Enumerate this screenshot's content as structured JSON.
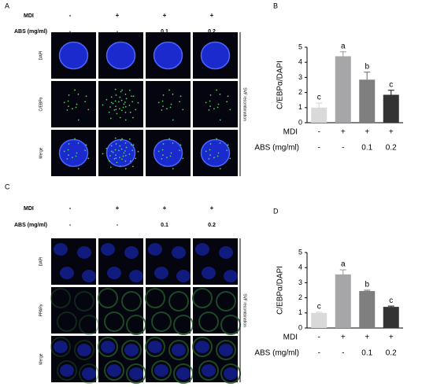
{
  "panels": [
    {
      "label": "A",
      "mdi_label": "MDI",
      "mdi": [
        "-",
        "+",
        "+",
        "+"
      ],
      "abs_label": "ABS  (mg/ml)",
      "abs": [
        "-",
        "-",
        "0.1",
        "0.2"
      ],
      "rows": [
        "DAPI",
        "C/EBPα",
        "Merge"
      ],
      "side_label": "SVF recombination"
    },
    {
      "label": "C",
      "mdi_label": "MDI",
      "mdi": [
        "-",
        "+",
        "+",
        "+"
      ],
      "abs_label": "ABS  (mg/ml)",
      "abs": [
        "-",
        "-",
        "0.1",
        "0.2"
      ],
      "rows": [
        "DAPI",
        "PPARγ",
        "Merge"
      ],
      "side_label": "SVF recombination"
    }
  ],
  "chart_data": [
    {
      "type": "bar",
      "panel_label": "B",
      "ylabel": "C/EBPα/DAPI",
      "ylim": [
        0,
        5
      ],
      "yticks": [
        0,
        1,
        2,
        3,
        4,
        5
      ],
      "values": [
        1.0,
        4.4,
        2.85,
        1.85
      ],
      "errors": [
        0.3,
        0.3,
        0.5,
        0.3
      ],
      "colors": [
        "#d9d9d9",
        "#a6a6a8",
        "#7f7f80",
        "#333333"
      ],
      "annotations": [
        "c",
        "a",
        "b",
        "c"
      ],
      "conditions": [
        {
          "name": "MDI",
          "values": [
            "-",
            "+",
            "+",
            "+"
          ]
        },
        {
          "name": "ABS (mg/ml)",
          "values": [
            "-",
            "-",
            "0.1",
            "0.2"
          ]
        }
      ]
    },
    {
      "type": "bar",
      "panel_label": "D",
      "ylabel": "C/EBPα/DAPI",
      "ylim": [
        0,
        5
      ],
      "yticks": [
        0,
        1,
        2,
        3,
        4,
        5
      ],
      "values": [
        1.0,
        3.55,
        2.45,
        1.4
      ],
      "errors": [
        0.05,
        0.3,
        0.05,
        0.05
      ],
      "colors": [
        "#d9d9d9",
        "#a6a6a8",
        "#7f7f80",
        "#333333"
      ],
      "annotations": [
        "c",
        "a",
        "b",
        "c"
      ],
      "conditions": [
        {
          "name": "MDI",
          "values": [
            "-",
            "+",
            "+",
            "+"
          ]
        },
        {
          "name": "ABS (mg/ml)",
          "values": [
            "-",
            "-",
            "0.1",
            "0.2"
          ]
        }
      ]
    }
  ]
}
